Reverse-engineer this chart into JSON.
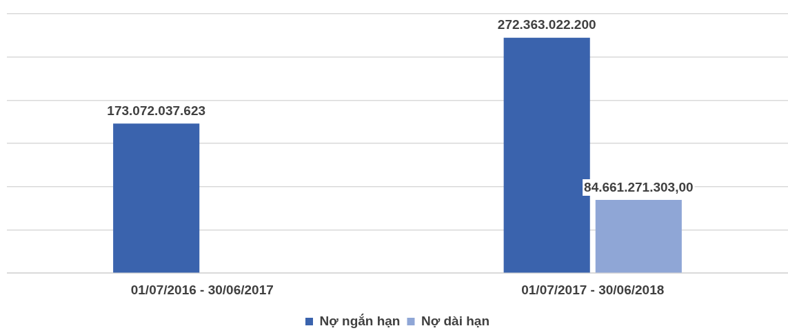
{
  "chart_data": {
    "type": "bar",
    "categories": [
      "01/07/2016 - 30/06/2017",
      "01/07/2017 - 30/06/2018"
    ],
    "series": [
      {
        "name": "Nợ ngắn hạn",
        "color": "#3a63ad",
        "values": [
          173072037623,
          272363022200
        ],
        "value_labels": [
          "173.072.037.623",
          "272.363.022.200"
        ]
      },
      {
        "name": "Nợ dài hạn",
        "color": "#8fa6d6",
        "values": [
          null,
          84661271303
        ],
        "value_labels": [
          null,
          "84.661.271.303,00"
        ]
      }
    ],
    "ylim": [
      0,
      300000000000
    ],
    "yticks": [
      {
        "value": 0,
        "label": null
      },
      {
        "value": 50000000000,
        "label": null
      },
      {
        "value": 100000000000,
        "label": null
      },
      {
        "value": 150000000000,
        "label": null
      },
      {
        "value": 200000000000,
        "label": null
      },
      {
        "value": 250000000000,
        "label": null
      },
      {
        "value": 300000000000,
        "label": null
      }
    ],
    "tick_labels": "x",
    "grid": "y",
    "legend": "bottom"
  }
}
